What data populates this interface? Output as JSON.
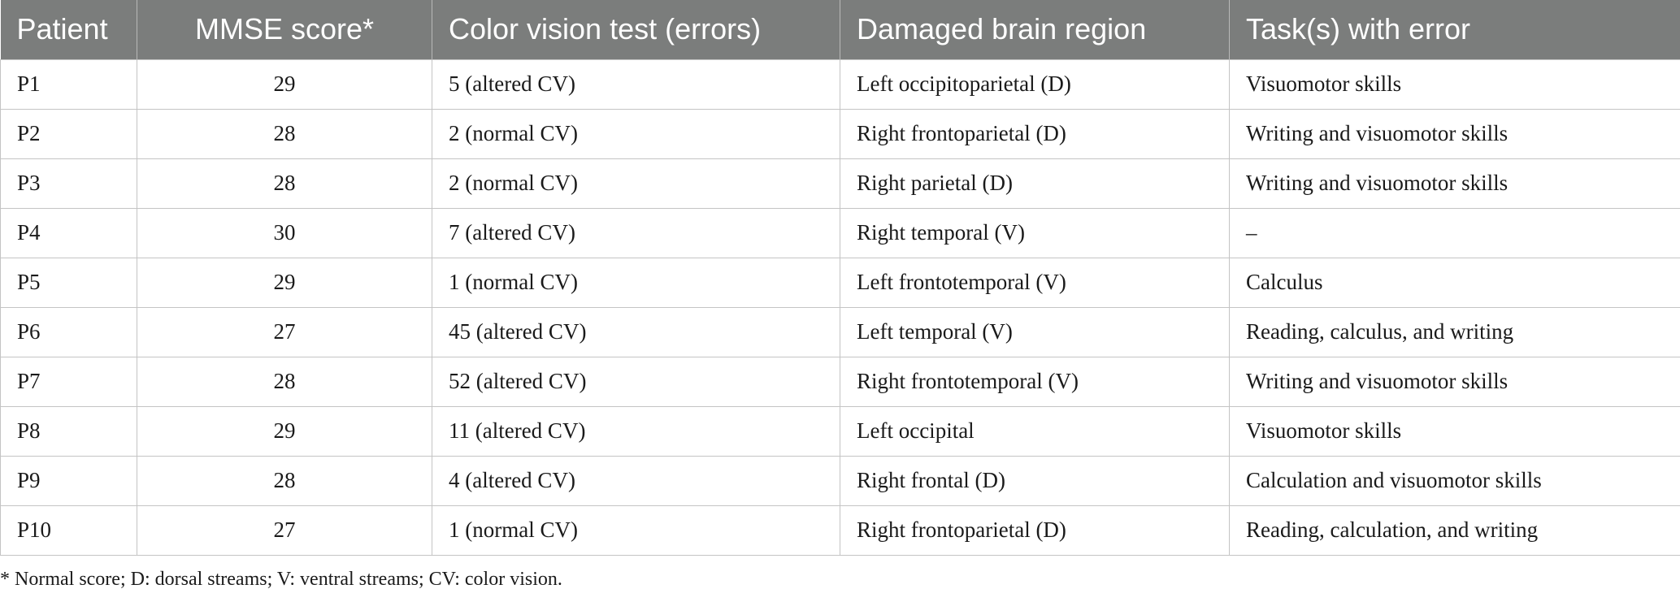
{
  "table": {
    "headers": [
      "Patient",
      "MMSE score*",
      "Color vision test (errors)",
      "Damaged brain region",
      "Task(s) with error"
    ],
    "rows": [
      [
        "P1",
        "29",
        "5 (altered CV)",
        "Left occipitoparietal (D)",
        "Visuomotor skills"
      ],
      [
        "P2",
        "28",
        "2 (normal CV)",
        "Right frontoparietal (D)",
        "Writing and visuomotor skills"
      ],
      [
        "P3",
        "28",
        "2 (normal CV)",
        "Right parietal (D)",
        "Writing and visuomotor skills"
      ],
      [
        "P4",
        "30",
        "7 (altered CV)",
        "Right temporal (V)",
        "–"
      ],
      [
        "P5",
        "29",
        "1 (normal CV)",
        "Left frontotemporal (V)",
        "Calculus"
      ],
      [
        "P6",
        "27",
        "45 (altered CV)",
        "Left temporal (V)",
        "Reading, calculus, and writing"
      ],
      [
        "P7",
        "28",
        "52 (altered CV)",
        "Right frontotemporal (V)",
        "Writing and visuomotor skills"
      ],
      [
        "P8",
        "29",
        "11 (altered CV)",
        "Left occipital",
        "Visuomotor skills"
      ],
      [
        "P9",
        "28",
        "4 (altered CV)",
        "Right frontal (D)",
        "Calculation and visuomotor skills"
      ],
      [
        "P10",
        "27",
        "1 (normal CV)",
        "Right frontoparietal (D)",
        "Reading, calculation, and writing"
      ]
    ]
  },
  "footnote": "* Normal score; D: dorsal streams; V: ventral streams; CV: color vision."
}
